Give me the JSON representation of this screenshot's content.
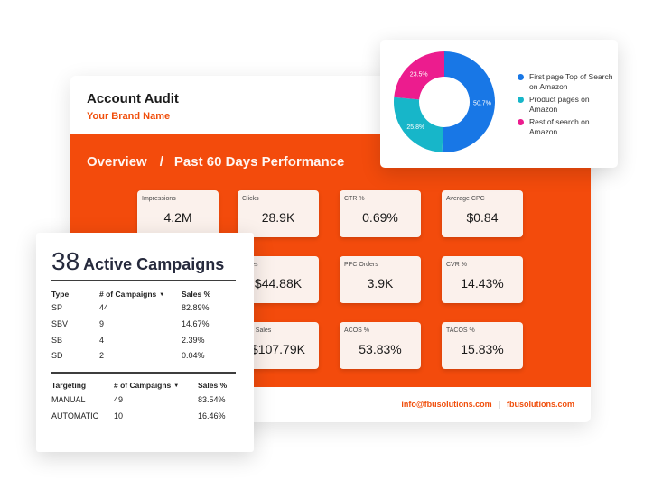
{
  "audit": {
    "title": "Account Audit",
    "brand": "Your Brand Name",
    "overview": "Overview",
    "separator": "/",
    "period": "Past 60 Days Performance",
    "metrics": [
      {
        "label": "Impressions",
        "value": "4.2M"
      },
      {
        "label": "Clicks",
        "value": "28.9K"
      },
      {
        "label": "CTR %",
        "value": "0.69%"
      },
      {
        "label": "Average CPC",
        "value": "$0.84"
      },
      {
        "label": "Sales",
        "value": "$44.88K"
      },
      {
        "label": "PPC Orders",
        "value": "3.9K"
      },
      {
        "label": "CVR %",
        "value": "14.43%"
      },
      {
        "label": "anic Sales",
        "value": "$107.79K"
      },
      {
        "label": "ACOS %",
        "value": "53.83%"
      },
      {
        "label": "TACOS %",
        "value": "15.83%"
      }
    ],
    "footer": {
      "email": "info@fbusolutions.com",
      "pipe": "|",
      "site": "fbusolutions.com"
    }
  },
  "donut": {
    "segments": [
      {
        "label": "50.7%",
        "value": 50.7,
        "color": "#1877e6"
      },
      {
        "label": "25.8%",
        "value": 25.8,
        "color": "#17b6c9"
      },
      {
        "label": "23.5%",
        "value": 23.5,
        "color": "#ec1c8e"
      }
    ],
    "legend": [
      {
        "label": "First page Top of Search on Amazon",
        "color": "#1877e6"
      },
      {
        "label": "Product pages on Amazon",
        "color": "#17b6c9"
      },
      {
        "label": "Rest of search on Amazon",
        "color": "#ec1c8e"
      }
    ]
  },
  "campaigns": {
    "count": "38",
    "label": "Active Campaigns",
    "type_table": {
      "headers": [
        "Type",
        "# of Campaigns",
        "Sales %"
      ],
      "rows": [
        [
          "SP",
          "44",
          "82.89%"
        ],
        [
          "SBV",
          "9",
          "14.67%"
        ],
        [
          "SB",
          "4",
          "2.39%"
        ],
        [
          "SD",
          "2",
          "0.04%"
        ]
      ]
    },
    "targeting_table": {
      "headers": [
        "Targeting",
        "# of Campaigns",
        "Sales %"
      ],
      "rows": [
        [
          "MANUAL",
          "49",
          "83.54%"
        ],
        [
          "AUTOMATIC",
          "10",
          "16.46%"
        ]
      ]
    },
    "sort_icon": "caret-down-icon"
  }
}
